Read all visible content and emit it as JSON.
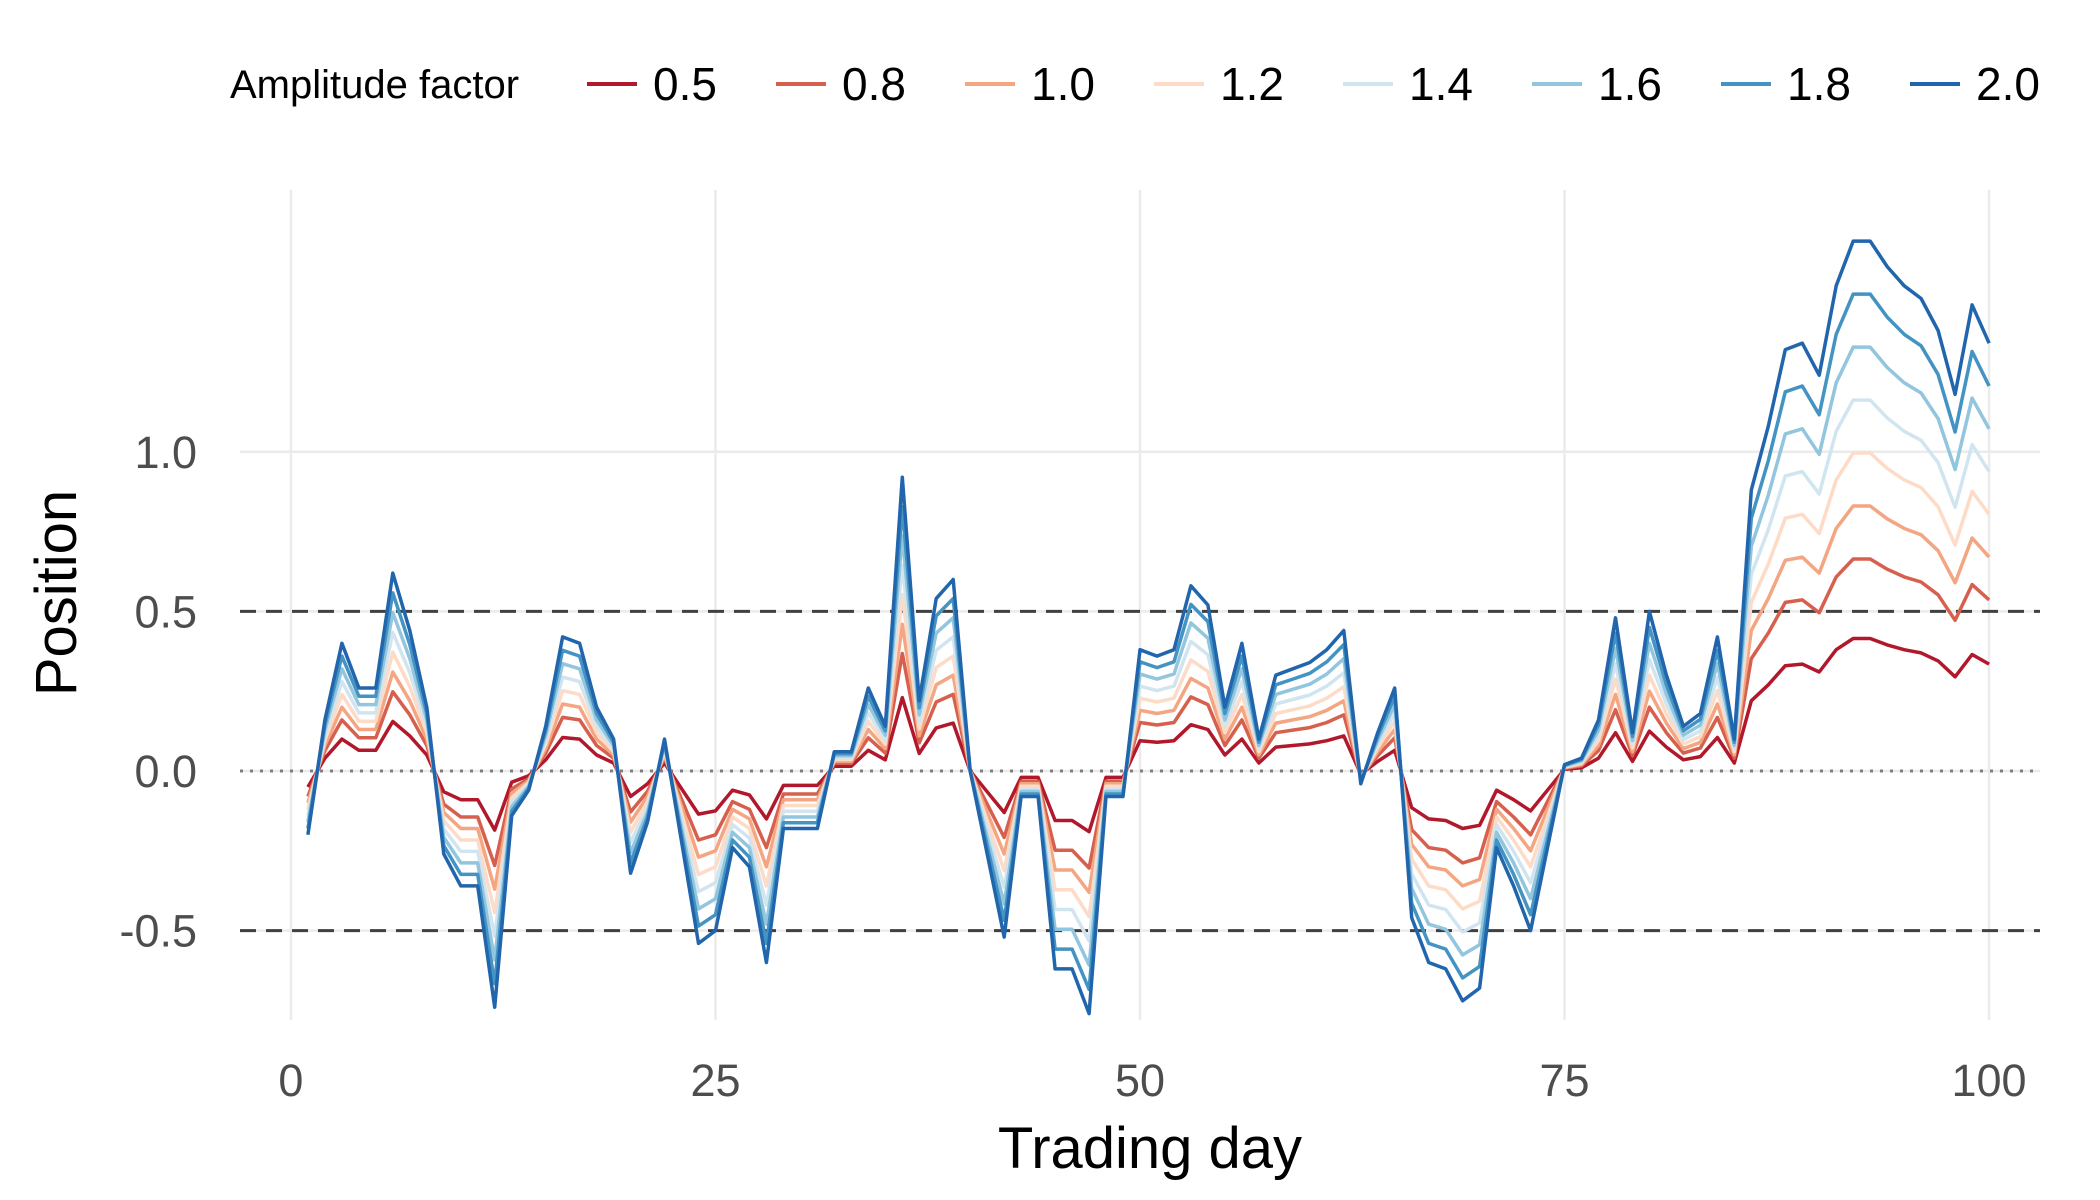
{
  "chart_data": {
    "type": "line",
    "xlabel": "Trading day",
    "ylabel": "Position",
    "xlim": [
      -3,
      103
    ],
    "ylim": [
      -0.78,
      1.82
    ],
    "x_ticks": [
      0,
      25,
      50,
      75,
      100
    ],
    "x_tick_labels": [
      "0",
      "25",
      "50",
      "75",
      "100"
    ],
    "y_ticks": [
      -0.5,
      0.0,
      0.5,
      1.0
    ],
    "y_tick_labels": [
      "-0.5",
      "0.0",
      "0.5",
      "1.0"
    ],
    "grid": true,
    "reference_lines": [
      {
        "y": 0.5,
        "style": "dashed"
      },
      {
        "y": -0.5,
        "style": "dashed"
      },
      {
        "y": 0.0,
        "style": "dotted"
      }
    ],
    "legend": {
      "title": "Amplitude factor",
      "position": "top"
    },
    "base_series": {
      "name": "1.0",
      "x": [
        1,
        2,
        3,
        4,
        5,
        6,
        7,
        8,
        9,
        10,
        11,
        12,
        13,
        14,
        15,
        16,
        17,
        18,
        19,
        20,
        21,
        22,
        23,
        24,
        25,
        26,
        27,
        28,
        29,
        30,
        31,
        32,
        33,
        34,
        35,
        36,
        37,
        38,
        39,
        40,
        41,
        42,
        43,
        44,
        45,
        46,
        47,
        48,
        49,
        50,
        51,
        52,
        53,
        54,
        55,
        56,
        57,
        58,
        59,
        60,
        61,
        62,
        63,
        64,
        65,
        66,
        67,
        68,
        69,
        70,
        71,
        72,
        73,
        74,
        75,
        76,
        77,
        78,
        79,
        80,
        81,
        82,
        83,
        84,
        85,
        86,
        87,
        88,
        89,
        90,
        91,
        92,
        93,
        94,
        95,
        96,
        97,
        98,
        99,
        100
      ],
      "values": [
        -0.1,
        0.08,
        0.2,
        0.13,
        0.13,
        0.31,
        0.22,
        0.1,
        -0.13,
        -0.18,
        -0.18,
        -0.37,
        -0.07,
        -0.03,
        0.07,
        0.21,
        0.2,
        0.1,
        0.05,
        -0.16,
        -0.08,
        0.05,
        -0.11,
        -0.27,
        -0.25,
        -0.12,
        -0.15,
        -0.3,
        -0.09,
        -0.09,
        -0.09,
        0.03,
        0.03,
        0.13,
        0.07,
        0.46,
        0.11,
        0.27,
        0.3,
        0.0,
        -0.13,
        -0.26,
        -0.04,
        -0.04,
        -0.31,
        -0.31,
        -0.38,
        -0.04,
        -0.04,
        0.19,
        0.18,
        0.19,
        0.29,
        0.26,
        0.1,
        0.2,
        0.05,
        0.15,
        0.16,
        0.17,
        0.19,
        0.22,
        -0.02,
        0.06,
        0.13,
        -0.23,
        -0.3,
        -0.31,
        -0.36,
        -0.34,
        -0.12,
        -0.18,
        -0.25,
        -0.12,
        0.01,
        0.02,
        0.08,
        0.24,
        0.06,
        0.25,
        0.15,
        0.07,
        0.09,
        0.21,
        0.05,
        0.44,
        0.54,
        0.66,
        0.67,
        0.62,
        0.76,
        0.83,
        0.83,
        0.79,
        0.76,
        0.74,
        0.69,
        0.59,
        0.73,
        0.67
      ]
    },
    "series": [
      {
        "name": "0.5",
        "factor": 0.5,
        "color": "#b2182b"
      },
      {
        "name": "0.8",
        "factor": 0.8,
        "color": "#d6604d"
      },
      {
        "name": "1.0",
        "factor": 1.0,
        "color": "#f4a582"
      },
      {
        "name": "1.2",
        "factor": 1.2,
        "color": "#fddbc7"
      },
      {
        "name": "1.4",
        "factor": 1.4,
        "color": "#d1e5f0"
      },
      {
        "name": "1.6",
        "factor": 1.6,
        "color": "#92c5de"
      },
      {
        "name": "1.8",
        "factor": 1.8,
        "color": "#4393c3"
      },
      {
        "name": "2.0",
        "factor": 2.0,
        "color": "#2166ac"
      }
    ],
    "colors": {
      "grid": "#ebebeb",
      "reference_dashed": "#404040",
      "reference_dotted": "#808080",
      "tick_text": "#4d4d4d"
    }
  }
}
